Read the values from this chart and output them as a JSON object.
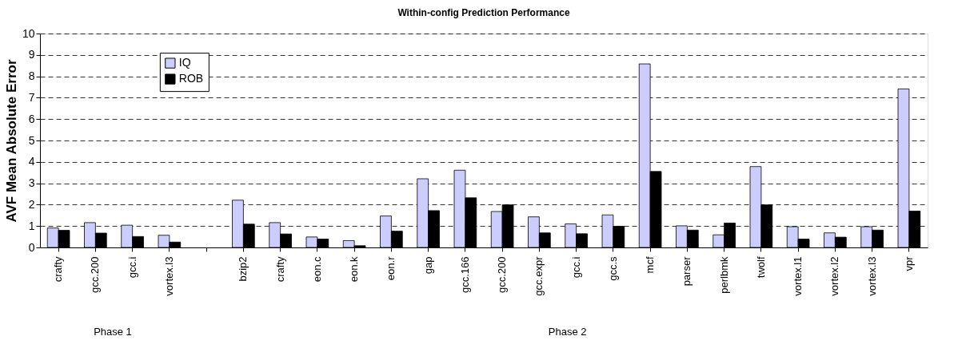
{
  "chart_data": {
    "type": "bar",
    "title": "Within-config Prediction Performance",
    "ylabel": "AVF Mean Absolute Error",
    "categories": [
      "crafty",
      "gcc.200",
      "gcc.i",
      "vortex.l3",
      null,
      "bzip2",
      "crafty",
      "eon.c",
      "eon.k",
      "eon.r",
      "gap",
      "gcc.166",
      "gcc.200",
      "gcc.expr",
      "gcc.i",
      "gcc.s",
      "mcf",
      "parser",
      "perlbmk",
      "twolf",
      "vortex.l1",
      "vortex.l2",
      "vortex.l3",
      "vpr"
    ],
    "series": [
      {
        "name": "IQ",
        "color": "#ccccff",
        "values": [
          0.91,
          1.16,
          1.04,
          0.57,
          null,
          2.21,
          1.16,
          0.49,
          0.32,
          1.47,
          3.21,
          3.61,
          1.68,
          1.43,
          1.1,
          1.52,
          8.58,
          1.01,
          0.59,
          3.78,
          0.97,
          0.68,
          0.97,
          7.41
        ]
      },
      {
        "name": "ROB",
        "color": "#000000",
        "values": [
          0.8,
          0.67,
          0.51,
          0.25,
          null,
          1.09,
          0.63,
          0.39,
          0.08,
          0.76,
          1.72,
          2.32,
          1.99,
          0.68,
          0.64,
          0.99,
          3.55,
          0.81,
          1.14,
          1.99,
          0.39,
          0.48,
          0.81,
          1.7
        ]
      }
    ],
    "ylim": [
      0,
      10
    ],
    "yticks": [
      0,
      1,
      2,
      3,
      4,
      5,
      6,
      7,
      8,
      9,
      10
    ],
    "grid": "y",
    "legend": "top left",
    "annotations": [
      "Phase 1",
      "Phase 2"
    ]
  }
}
